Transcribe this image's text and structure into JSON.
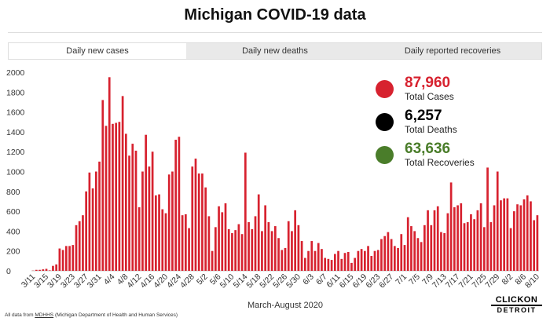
{
  "header": {
    "title": "Michigan COVID-19 data"
  },
  "tabs": [
    "Daily new cases",
    "Daily new deaths",
    "Daily reported recoveries"
  ],
  "stats": [
    {
      "value": "87,960",
      "label": "Total Cases",
      "color": "#d7222f"
    },
    {
      "value": "6,257",
      "label": "Total Deaths",
      "color": "#000000"
    },
    {
      "value": "63,636",
      "label": "Total Recoveries",
      "color": "#4a7d2a"
    }
  ],
  "chart_data": {
    "type": "bar",
    "color": "#d7222f",
    "xlabel": "March-August 2020",
    "ylim": [
      0,
      2000
    ],
    "yticks": [
      0,
      200,
      400,
      600,
      800,
      1000,
      1200,
      1400,
      1600,
      1800,
      2000
    ],
    "categories": [
      "3/11",
      null,
      null,
      null,
      "3/15",
      null,
      null,
      null,
      "3/19",
      null,
      null,
      null,
      "3/23",
      null,
      null,
      null,
      "3/27",
      null,
      null,
      null,
      "3/31",
      null,
      null,
      null,
      "4/4",
      null,
      null,
      null,
      "4/8",
      null,
      null,
      null,
      "4/12",
      null,
      null,
      null,
      "4/16",
      null,
      null,
      null,
      "4/20",
      null,
      null,
      null,
      "4/24",
      null,
      null,
      null,
      "4/28",
      null,
      null,
      null,
      "5/2",
      null,
      null,
      null,
      "5/6",
      null,
      null,
      null,
      "5/10",
      null,
      null,
      null,
      "5/14",
      null,
      null,
      null,
      "5/18",
      null,
      null,
      null,
      "5/22",
      null,
      null,
      null,
      "5/26",
      null,
      null,
      null,
      "5/30",
      null,
      null,
      null,
      "6/3",
      null,
      null,
      null,
      "6/7",
      null,
      null,
      null,
      "6/11",
      null,
      null,
      null,
      "6/15",
      null,
      null,
      null,
      "6/19",
      null,
      null,
      null,
      "6/23",
      null,
      null,
      null,
      "6/27",
      null,
      null,
      null,
      "7/1",
      null,
      null,
      null,
      "7/5",
      null,
      null,
      null,
      "7/9",
      null,
      null,
      null,
      "7/13",
      null,
      null,
      null,
      "7/17",
      null,
      null,
      null,
      "7/21",
      null,
      null,
      null,
      "7/25",
      null,
      null,
      null,
      "7/29",
      null,
      null,
      null,
      "8/2",
      null,
      null,
      null,
      "8/6",
      null,
      null,
      null,
      "8/10"
    ],
    "values": [
      2,
      10,
      10,
      15,
      20,
      5,
      50,
      65,
      225,
      210,
      250,
      250,
      260,
      460,
      500,
      560,
      800,
      990,
      830,
      1000,
      1100,
      1720,
      1460,
      1950,
      1480,
      1490,
      1500,
      1760,
      1380,
      1160,
      1280,
      1210,
      640,
      1000,
      1370,
      1050,
      1200,
      760,
      770,
      620,
      580,
      970,
      1000,
      1320,
      1350,
      560,
      570,
      430,
      1050,
      1130,
      980,
      980,
      840,
      550,
      200,
      440,
      650,
      590,
      680,
      420,
      380,
      410,
      470,
      370,
      1190,
      490,
      420,
      550,
      770,
      400,
      660,
      490,
      400,
      450,
      330,
      210,
      230,
      500,
      400,
      610,
      460,
      300,
      130,
      200,
      300,
      200,
      280,
      220,
      130,
      120,
      110,
      170,
      200,
      120,
      180,
      190,
      80,
      130,
      200,
      220,
      200,
      250,
      150,
      200,
      210,
      320,
      350,
      390,
      320,
      250,
      230,
      370,
      260,
      540,
      450,
      400,
      330,
      290,
      460,
      610,
      460,
      610,
      650,
      390,
      380,
      580,
      890,
      640,
      660,
      680,
      480,
      490,
      570,
      520,
      610,
      680,
      440,
      1040,
      490,
      660,
      1000,
      710,
      730,
      730,
      430,
      600,
      670,
      660,
      720,
      760,
      700,
      510,
      560
    ]
  },
  "footer": {
    "prefix": "All data from",
    "link": "MDHHS",
    "suffix": "(Michigan Department of Health and Human Services)"
  },
  "logo": {
    "top": "CLICKON",
    "bottom": "DETROIT"
  }
}
